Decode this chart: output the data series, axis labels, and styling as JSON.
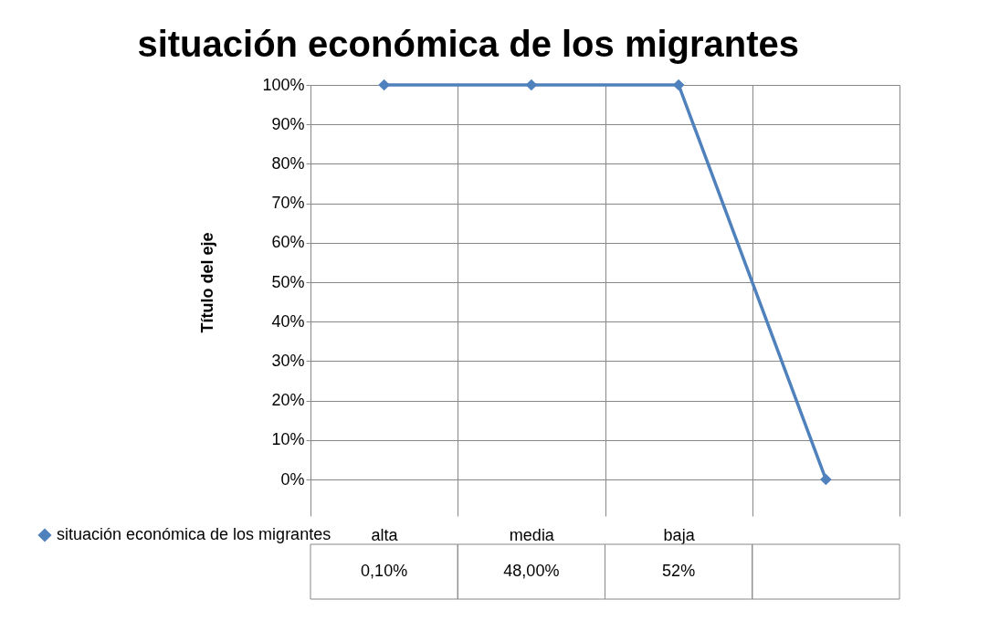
{
  "chart_data": {
    "type": "line",
    "title": "situación económica de los migrantes",
    "ylabel": "Título del eje",
    "categories": [
      "alta",
      "media",
      "baja",
      null
    ],
    "series": [
      {
        "name": "situación económica de los migrantes",
        "color": "#4f81bd",
        "values": [
          100,
          100,
          100,
          0
        ]
      }
    ],
    "annotations": [
      "0,10%",
      "48,00%",
      "52%"
    ],
    "ylim": [
      0,
      100
    ],
    "yticks": [
      {
        "value": 0,
        "label": "0%"
      },
      {
        "value": 10,
        "label": "10%"
      },
      {
        "value": 20,
        "label": "20%"
      },
      {
        "value": 30,
        "label": "30%"
      },
      {
        "value": 40,
        "label": "40%"
      },
      {
        "value": 50,
        "label": "50%"
      },
      {
        "value": 60,
        "label": "60%"
      },
      {
        "value": 70,
        "label": "70%"
      },
      {
        "value": 80,
        "label": "80%"
      },
      {
        "value": 90,
        "label": "90%"
      },
      {
        "value": 100,
        "label": "100%"
      }
    ],
    "grid": true,
    "legend": "bottom left",
    "marker": "diamond",
    "line_style": "solid"
  }
}
